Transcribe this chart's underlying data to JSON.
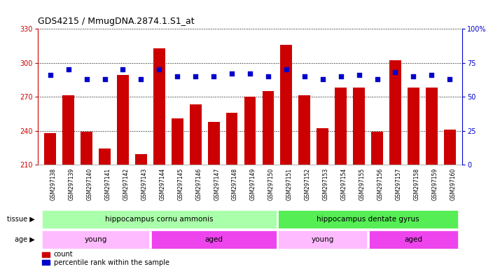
{
  "title": "GDS4215 / MmugDNA.2874.1.S1_at",
  "samples": [
    "GSM297138",
    "GSM297139",
    "GSM297140",
    "GSM297141",
    "GSM297142",
    "GSM297143",
    "GSM297144",
    "GSM297145",
    "GSM297146",
    "GSM297147",
    "GSM297148",
    "GSM297149",
    "GSM297150",
    "GSM297151",
    "GSM297152",
    "GSM297153",
    "GSM297154",
    "GSM297155",
    "GSM297156",
    "GSM297157",
    "GSM297158",
    "GSM297159",
    "GSM297160"
  ],
  "counts": [
    238,
    271,
    239,
    224,
    289,
    219,
    313,
    251,
    263,
    248,
    256,
    270,
    275,
    316,
    271,
    242,
    278,
    278,
    239,
    302,
    278,
    278,
    241
  ],
  "percentiles": [
    66,
    70,
    63,
    63,
    70,
    63,
    70,
    65,
    65,
    65,
    67,
    67,
    65,
    70,
    65,
    63,
    65,
    66,
    63,
    68,
    65,
    66,
    63
  ],
  "bar_color": "#cc0000",
  "dot_color": "#0000cc",
  "ylim_left": [
    210,
    330
  ],
  "ylim_right": [
    0,
    100
  ],
  "yticks_left": [
    210,
    240,
    270,
    300,
    330
  ],
  "yticks_right": [
    0,
    25,
    50,
    75,
    100
  ],
  "tissue_groups": [
    {
      "label": "hippocampus cornu ammonis",
      "start": 0,
      "end": 12,
      "color": "#aaffaa"
    },
    {
      "label": "hippocampus dentate gyrus",
      "start": 13,
      "end": 22,
      "color": "#55ee55"
    }
  ],
  "age_groups": [
    {
      "label": "young",
      "start": 0,
      "end": 5,
      "color": "#ffbbff"
    },
    {
      "label": "aged",
      "start": 6,
      "end": 12,
      "color": "#ee44ee"
    },
    {
      "label": "young",
      "start": 13,
      "end": 17,
      "color": "#ffbbff"
    },
    {
      "label": "aged",
      "start": 18,
      "end": 22,
      "color": "#ee44ee"
    }
  ],
  "bg_color": "#ffffff",
  "xticklabel_bg": "#dddddd",
  "axis_left_color": "#cc0000",
  "axis_right_color": "#0000cc",
  "title_fontsize": 9,
  "tick_fontsize": 7,
  "label_fontsize": 7,
  "row_label_fontsize": 7.5
}
